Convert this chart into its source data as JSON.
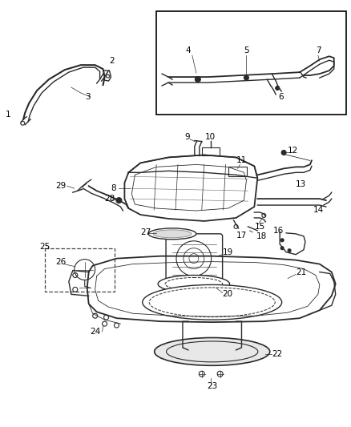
{
  "background_color": "#ffffff",
  "fig_width": 4.38,
  "fig_height": 5.33,
  "dpi": 100,
  "line_color": "#2a2a2a",
  "label_fontsize": 7.5
}
